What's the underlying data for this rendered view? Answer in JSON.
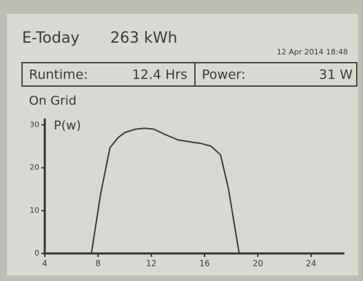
{
  "header": {
    "label": "E-Today",
    "energy": "263 kWh",
    "datetime": "12 Apr 2014 18:48"
  },
  "status": {
    "runtime_label": "Runtime:",
    "runtime": "12.4 Hrs",
    "power_label": "Power:",
    "power": "31 W",
    "state": "On Grid"
  },
  "chart_data": {
    "type": "line",
    "y_label": "P(w)",
    "x": [
      7.5,
      8.2,
      8.9,
      9.5,
      10.0,
      10.8,
      11.5,
      12.2,
      13.0,
      14.0,
      15.0,
      15.7,
      16.5,
      17.2,
      17.8,
      18.6
    ],
    "series": [
      {
        "color": "#3a3a3a",
        "values": [
          0,
          14,
          24.7,
          27,
          28.2,
          29,
          29.2,
          29,
          27.8,
          26.5,
          26,
          25.7,
          25,
          23,
          15,
          0
        ]
      }
    ],
    "xlim": [
      4,
      26.5
    ],
    "ylim": [
      0,
      31.5
    ],
    "xticks": [
      4,
      8,
      12,
      16,
      20,
      24
    ],
    "yticks": [
      0,
      10,
      20,
      30
    ]
  }
}
